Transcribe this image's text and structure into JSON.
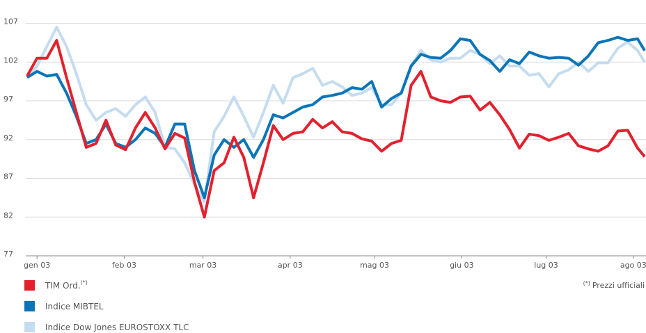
{
  "chart_data": {
    "type": "line",
    "x": [
      -3.5,
      0,
      3.5,
      7,
      10.5,
      14,
      17.5,
      21,
      24.5,
      28,
      31.5,
      35,
      38.5,
      42,
      45.5,
      49,
      52.5,
      56,
      59.5,
      63,
      66.5,
      70,
      73.5,
      77,
      80.5,
      84,
      87.5,
      91,
      94.5,
      98,
      101.5,
      105,
      108.5,
      112,
      115.5,
      119,
      122.5,
      126,
      129.5,
      133,
      136.5,
      140,
      143.5,
      147,
      150.5,
      154,
      157.5,
      161,
      164.5,
      168,
      171.5,
      175,
      178.5,
      182,
      185.5,
      189,
      192.5,
      196,
      199.5,
      203,
      206.5,
      210,
      213.5,
      216
    ],
    "xlim": [
      -4,
      216.5
    ],
    "xticks": [
      {
        "value": 0,
        "label": "gen 03"
      },
      {
        "value": 31,
        "label": "feb 03"
      },
      {
        "value": 59,
        "label": "mar 03"
      },
      {
        "value": 90,
        "label": "apr 03"
      },
      {
        "value": 120,
        "label": "mag 03"
      },
      {
        "value": 151,
        "label": "giu 03"
      },
      {
        "value": 181,
        "label": "lug 03"
      },
      {
        "value": 212,
        "label": "ago 03"
      }
    ],
    "ylim": [
      77,
      107.5
    ],
    "yticks": [
      77,
      82,
      87,
      92,
      97,
      102,
      107
    ],
    "grid": true,
    "series": [
      {
        "name": "TIM Ord.",
        "name_sup": "(*)",
        "color": "#e3212e",
        "values": [
          100.2,
          102.5,
          102.5,
          104.8,
          100,
          95.5,
          91,
          91.5,
          94.5,
          91.3,
          90.7,
          93.5,
          95.5,
          93.5,
          90.8,
          92.8,
          92.2,
          86.5,
          82,
          88,
          89,
          92.3,
          89.7,
          84.5,
          89,
          93.8,
          92,
          92.8,
          93,
          94.6,
          93.5,
          94.3,
          93,
          92.8,
          92.1,
          91.8,
          90.5,
          91.5,
          91.9,
          99,
          100.8,
          97.5,
          97,
          96.8,
          97.5,
          97.6,
          95.8,
          96.8,
          95.2,
          93.3,
          90.9,
          92.7,
          92.5,
          91.9,
          92.3,
          92.8,
          91.2,
          90.8,
          90.5,
          91.2,
          93.1,
          93.2,
          90.9,
          89.8
        ]
      },
      {
        "name": "Indice MIBTEL",
        "color": "#0a75b8",
        "values": [
          100,
          100.8,
          100.2,
          100.4,
          98,
          95,
          91.5,
          92,
          94,
          91.5,
          91,
          92,
          93.5,
          92.8,
          91,
          94,
          94,
          88,
          84.5,
          90,
          92,
          91,
          92,
          89.7,
          92,
          95.2,
          94.8,
          95.5,
          96.2,
          96.5,
          97.5,
          97.7,
          98,
          98.7,
          98.5,
          99.5,
          96.2,
          97.3,
          98,
          101.5,
          103,
          102.6,
          102.5,
          103.5,
          105,
          104.8,
          103,
          102.2,
          100.8,
          102.3,
          101.8,
          103.3,
          102.8,
          102.5,
          102.6,
          102.5,
          101.6,
          102.8,
          104.5,
          104.8,
          105.2,
          104.8,
          105,
          103.5
        ]
      },
      {
        "name": "Indice Dow Jones EUROSTOXX TLC",
        "color": "#c5dcf0",
        "values": [
          100,
          101.5,
          104,
          106.5,
          104,
          100.5,
          96.5,
          94.5,
          95.5,
          96,
          95,
          96.5,
          97.5,
          95.5,
          91,
          90.8,
          89,
          86.2,
          84,
          93,
          95,
          97.5,
          95,
          92.3,
          95.5,
          99,
          96.7,
          100,
          100.5,
          101.2,
          99,
          99.5,
          98.8,
          97.7,
          98,
          98.7,
          96.5,
          96.5,
          98,
          101.5,
          103.5,
          102.3,
          102,
          102.5,
          102.5,
          103.5,
          103,
          101.8,
          102.8,
          101.5,
          101.5,
          100.3,
          100.5,
          98.8,
          100.5,
          101,
          102,
          100.8,
          101.9,
          101.9,
          103.8,
          104.6,
          103.5,
          102
        ]
      }
    ],
    "footnote": {
      "marker": "(*)",
      "text": "Prezzi ufficiali"
    }
  }
}
